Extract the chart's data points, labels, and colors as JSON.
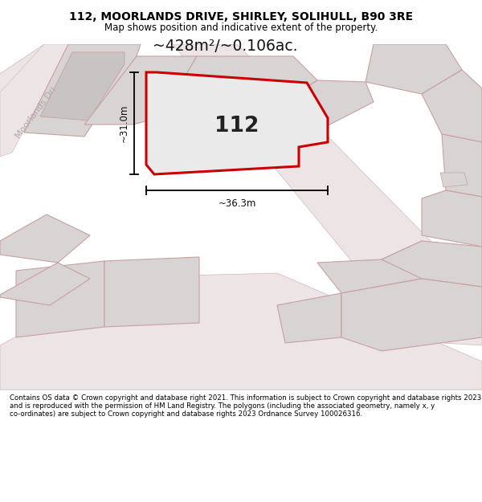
{
  "title_line1": "112, MOORLANDS DRIVE, SHIRLEY, SOLIHULL, B90 3RE",
  "title_line2": "Map shows position and indicative extent of the property.",
  "area_label": "~428m²/~0.106ac.",
  "plot_number": "112",
  "dim_height": "~31.0m",
  "dim_width": "~36.3m",
  "street_label": "Moorlands Dri",
  "footer_text": "Contains OS data © Crown copyright and database right 2021. This information is subject to Crown copyright and database rights 2023 and is reproduced with the permission of HM Land Registry. The polygons (including the associated geometry, namely x, y co-ordinates) are subject to Crown copyright and database rights 2023 Ordnance Survey 100026316.",
  "map_bg": "#f2eded",
  "plot_fill": "#eae6e6",
  "plot_outline": "#cc0000",
  "building_fill": "#d8d4d4",
  "building_outline": "#c8a0a0",
  "road_color": "#dcc8c8",
  "footer_bg": "#ffffff",
  "title_bg": "#ffffff"
}
